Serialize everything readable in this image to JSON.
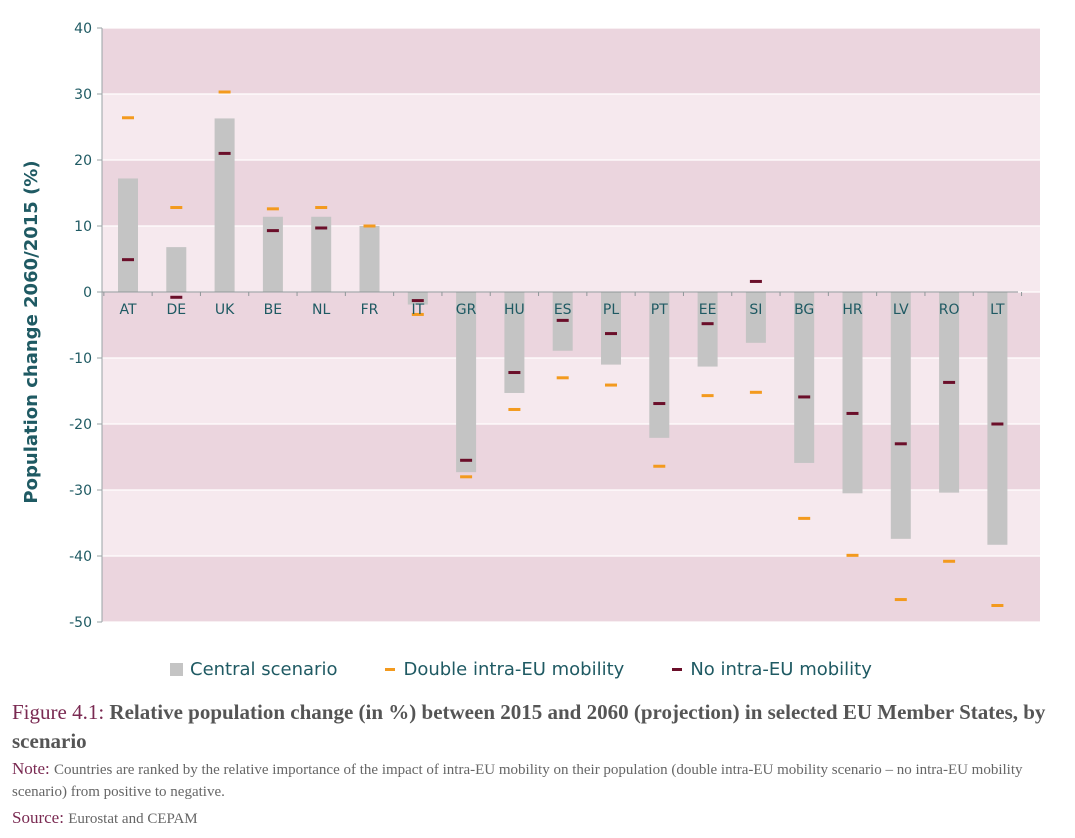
{
  "chart_data": {
    "type": "bar",
    "ylabel": "Population change 2060/2015 (%)",
    "ylim": [
      -50,
      40
    ],
    "yticks": [
      40,
      30,
      20,
      10,
      0,
      -10,
      -20,
      -30,
      -40,
      -50
    ],
    "grid": true,
    "legend_position": "bottom",
    "categories": [
      "AT",
      "DE",
      "UK",
      "BE",
      "NL",
      "FR",
      "IT",
      "GR",
      "HU",
      "ES",
      "PL",
      "PT",
      "EE",
      "SI",
      "BG",
      "HR",
      "LV",
      "RO",
      "LT"
    ],
    "series": [
      {
        "name": "Central scenario",
        "kind": "bar",
        "color": "#c4c4c4",
        "values": [
          17.2,
          6.8,
          26.3,
          11.4,
          11.4,
          10.0,
          -1.9,
          -27.3,
          -15.3,
          -8.9,
          -11.0,
          -22.1,
          -11.3,
          -7.7,
          -25.9,
          -30.5,
          -37.4,
          -30.4,
          -38.3
        ]
      },
      {
        "name": "Double intra-EU mobility",
        "kind": "marker",
        "color": "#f39a1e",
        "values": [
          26.4,
          12.8,
          30.3,
          12.6,
          12.8,
          10.0,
          -3.4,
          -28.0,
          -17.8,
          -13.0,
          -14.1,
          -26.4,
          -15.7,
          -15.2,
          -34.3,
          -39.9,
          -46.6,
          -40.8,
          -47.5
        ]
      },
      {
        "name": "No intra-EU mobility",
        "kind": "marker",
        "color": "#6b0f2a",
        "values": [
          4.9,
          -0.8,
          21.0,
          9.3,
          9.7,
          10.0,
          -1.3,
          -25.5,
          -12.2,
          -4.3,
          -6.3,
          -16.9,
          -4.8,
          1.6,
          -15.9,
          -18.4,
          -23.0,
          -13.7,
          -20.0
        ]
      }
    ]
  },
  "legend": {
    "central": "Central scenario",
    "double": "Double intra-EU mobility",
    "none": "No intra-EU mobility"
  },
  "caption": {
    "figure_label": "Figure 4.1: ",
    "figure_title": "Relative population change (in %) between 2015 and 2060 (projection) in selected EU Member States, by scenario",
    "note_label": "Note: ",
    "note_text": "Countries are ranked by the relative importance of the impact of intra-EU mobility on their population (double intra-EU mobility scenario – no intra-EU mobility scenario) from positive to negative.",
    "source_label": "Source: ",
    "source_text": "Eurostat and CEPAM"
  },
  "colors": {
    "band_dark": "#ebd5de",
    "band_light": "#f6e9ee",
    "axis_text": "#1f5a63",
    "bar": "#c4c4c4",
    "double_marker": "#f39a1e",
    "no_mobility_marker": "#6b0f2a"
  }
}
